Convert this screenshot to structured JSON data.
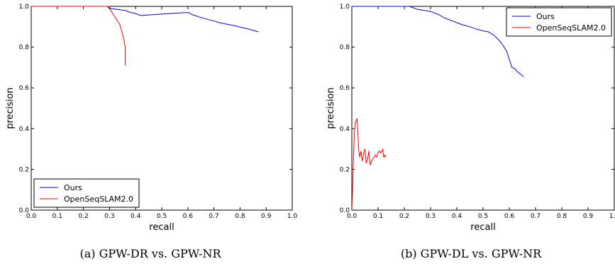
{
  "chart_data": [
    {
      "type": "line",
      "caption": "(a) GPW-DR vs. GPW-NR",
      "xlabel": "recall",
      "ylabel": "precision",
      "xlim": [
        0,
        1
      ],
      "ylim": [
        0,
        1
      ],
      "xticks": [
        "0.0",
        "0.1",
        "0.2",
        "0.3",
        "0.4",
        "0.5",
        "0.6",
        "0.7",
        "0.8",
        "0.9",
        "1.0"
      ],
      "yticks": [
        "0.0",
        "0.2",
        "0.4",
        "0.6",
        "0.8",
        "1.0"
      ],
      "legend_position": "bottom-left",
      "series": [
        {
          "name": "Ours",
          "color": "#0000ff",
          "x": [
            0.0,
            0.29,
            0.3,
            0.33,
            0.36,
            0.38,
            0.4,
            0.42,
            0.45,
            0.5,
            0.55,
            0.6,
            0.62,
            0.65,
            0.68,
            0.7,
            0.72,
            0.75,
            0.78,
            0.8,
            0.83,
            0.85,
            0.87
          ],
          "y": [
            1.0,
            1.0,
            0.99,
            0.985,
            0.98,
            0.97,
            0.965,
            0.955,
            0.958,
            0.962,
            0.966,
            0.97,
            0.958,
            0.945,
            0.935,
            0.928,
            0.92,
            0.912,
            0.905,
            0.898,
            0.89,
            0.882,
            0.875
          ]
        },
        {
          "name": "OpenSeqSLAM2.0",
          "color": "#ff0000",
          "x": [
            0.0,
            0.3,
            0.305,
            0.34,
            0.355,
            0.36,
            0.36
          ],
          "y": [
            1.0,
            1.0,
            0.98,
            0.91,
            0.84,
            0.8,
            0.71
          ]
        }
      ]
    },
    {
      "type": "line",
      "caption": "(b) GPW-DL vs. GPW-NR",
      "xlabel": "recall",
      "ylabel": "precision",
      "xlim": [
        0,
        1
      ],
      "ylim": [
        0,
        1
      ],
      "xticks": [
        "0.0",
        "0.1",
        "0.2",
        "0.3",
        "0.4",
        "0.5",
        "0.6",
        "0.7",
        "0.8",
        "0.9",
        "1.0"
      ],
      "yticks": [
        "0.0",
        "0.2",
        "0.4",
        "0.6",
        "0.8",
        "1.0"
      ],
      "legend_position": "top-right",
      "series": [
        {
          "name": "Ours",
          "color": "#0000ff",
          "x": [
            0.0,
            0.22,
            0.25,
            0.3,
            0.33,
            0.35,
            0.38,
            0.4,
            0.42,
            0.45,
            0.47,
            0.5,
            0.52,
            0.54,
            0.56,
            0.57,
            0.58,
            0.59,
            0.595,
            0.6,
            0.605,
            0.61,
            0.62,
            0.63,
            0.64,
            0.65,
            0.655
          ],
          "y": [
            1.0,
            1.0,
            0.985,
            0.975,
            0.96,
            0.945,
            0.93,
            0.92,
            0.91,
            0.9,
            0.89,
            0.88,
            0.875,
            0.86,
            0.835,
            0.82,
            0.8,
            0.78,
            0.76,
            0.74,
            0.72,
            0.7,
            0.695,
            0.68,
            0.67,
            0.66,
            0.655
          ]
        },
        {
          "name": "OpenSeqSLAM2.0",
          "color": "#ff0000",
          "x": [
            0.0,
            0.003,
            0.006,
            0.01,
            0.013,
            0.017,
            0.02,
            0.023,
            0.026,
            0.03,
            0.035,
            0.04,
            0.045,
            0.05,
            0.055,
            0.06,
            0.065,
            0.07,
            0.075,
            0.08,
            0.085,
            0.09,
            0.095,
            0.1,
            0.105,
            0.11,
            0.115,
            0.118,
            0.12,
            0.122,
            0.125,
            0.13
          ],
          "y": [
            0.0,
            0.1,
            0.25,
            0.38,
            0.43,
            0.44,
            0.45,
            0.38,
            0.3,
            0.26,
            0.29,
            0.24,
            0.28,
            0.3,
            0.23,
            0.25,
            0.29,
            0.22,
            0.24,
            0.25,
            0.26,
            0.27,
            0.26,
            0.28,
            0.29,
            0.28,
            0.29,
            0.3,
            0.27,
            0.26,
            0.27,
            0.26
          ]
        }
      ]
    }
  ]
}
